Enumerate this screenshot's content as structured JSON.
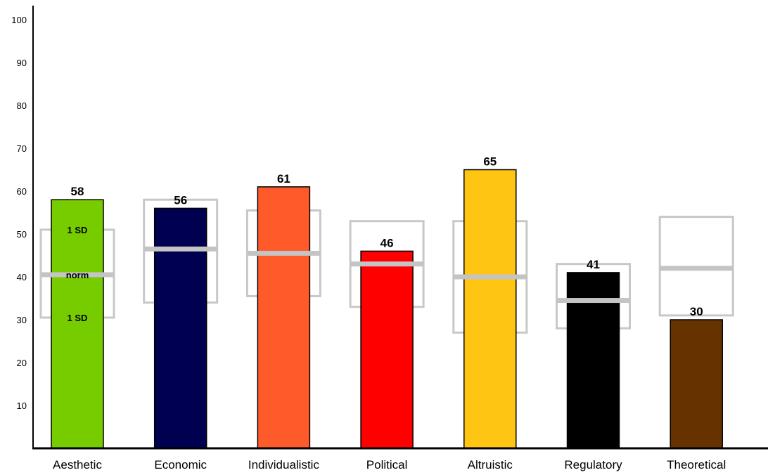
{
  "chart_data": {
    "type": "bar",
    "categories": [
      "Aesthetic",
      "Economic",
      "Individualistic",
      "Political",
      "Altruistic",
      "Regulatory",
      "Theoretical"
    ],
    "values": [
      58,
      56,
      61,
      46,
      65,
      41,
      30
    ],
    "value_labels": [
      "58",
      "56",
      "61",
      "46",
      "65",
      "41",
      "30"
    ],
    "colors": [
      "#77cc00",
      "#000050",
      "#ff5a2a",
      "#ff0000",
      "#ffc513",
      "#000000",
      "#663300"
    ],
    "norms": [
      {
        "mean": 40.5,
        "sd_low": 30.5,
        "sd_high": 51
      },
      {
        "mean": 46.5,
        "sd_low": 34,
        "sd_high": 58
      },
      {
        "mean": 45.5,
        "sd_low": 35.5,
        "sd_high": 55.5
      },
      {
        "mean": 43,
        "sd_low": 33,
        "sd_high": 53
      },
      {
        "mean": 40,
        "sd_low": 27,
        "sd_high": 53
      },
      {
        "mean": 34.5,
        "sd_low": 28,
        "sd_high": 43
      },
      {
        "mean": 42,
        "sd_low": 31,
        "sd_high": 54
      }
    ],
    "band_labels": {
      "upper": "1 SD",
      "middle": "norm",
      "lower": "1 SD"
    },
    "yticks": [
      10,
      20,
      30,
      40,
      50,
      60,
      70,
      80,
      90,
      100
    ],
    "ylim": [
      0,
      100
    ],
    "grid": false,
    "xlabel": "",
    "ylabel": "",
    "title": ""
  }
}
